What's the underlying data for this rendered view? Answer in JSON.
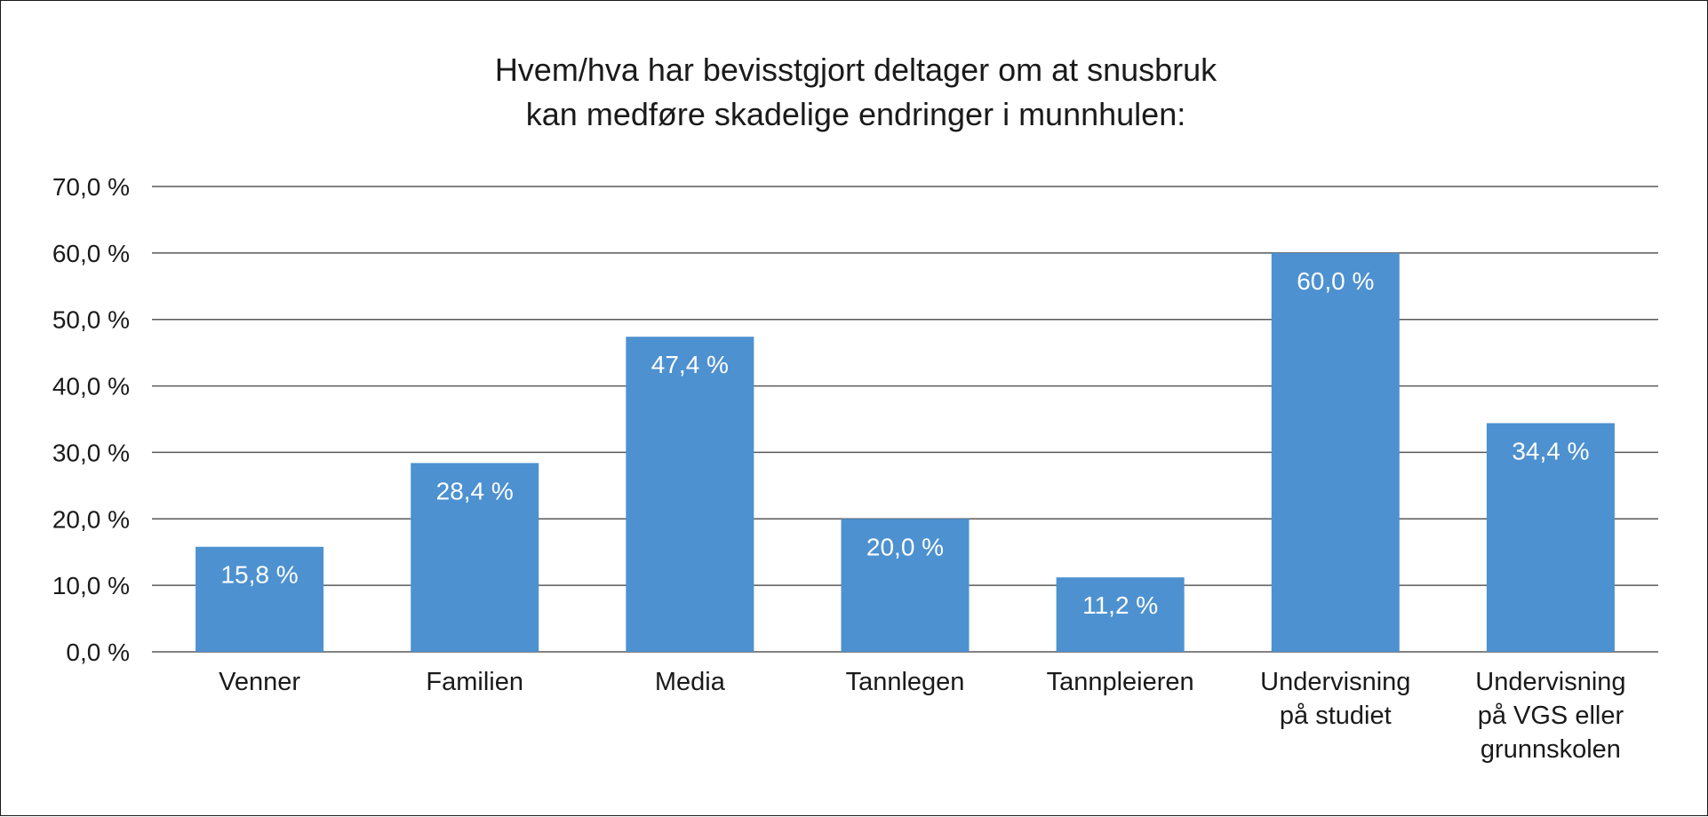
{
  "chart_data": {
    "type": "bar",
    "title_lines": [
      "Hvem/hva har bevisstgjort deltager om at snusbruk",
      "kan medføre skadelige endringer i munnhulen:"
    ],
    "categories": [
      [
        "Venner"
      ],
      [
        "Familien"
      ],
      [
        "Media"
      ],
      [
        "Tannlegen"
      ],
      [
        "Tannpleieren"
      ],
      [
        "Undervisning",
        "på studiet"
      ],
      [
        "Undervisning",
        "på VGS eller",
        "grunnskolen"
      ]
    ],
    "values": [
      15.8,
      28.4,
      47.4,
      20.0,
      11.2,
      60.0,
      34.4
    ],
    "data_labels": [
      "15,8 %",
      "28,4 %",
      "47,4 %",
      "20,0 %",
      "11,2 %",
      "60,0 %",
      "34,4 %"
    ],
    "yticks": [
      0,
      10,
      20,
      30,
      40,
      50,
      60,
      70
    ],
    "ytick_labels": [
      "0,0 %",
      "10,0 %",
      "20,0 %",
      "30,0 %",
      "40,0 %",
      "50,0 %",
      "60,0 %",
      "70,0 %"
    ],
    "ylim": [
      0,
      70
    ],
    "grid": true,
    "legend": "none",
    "xlabel": "",
    "ylabel": "",
    "colors": {
      "bar": "#4d91d0",
      "grid": "#595959",
      "text": "#1a1a1a",
      "label": "#ffffff"
    }
  }
}
